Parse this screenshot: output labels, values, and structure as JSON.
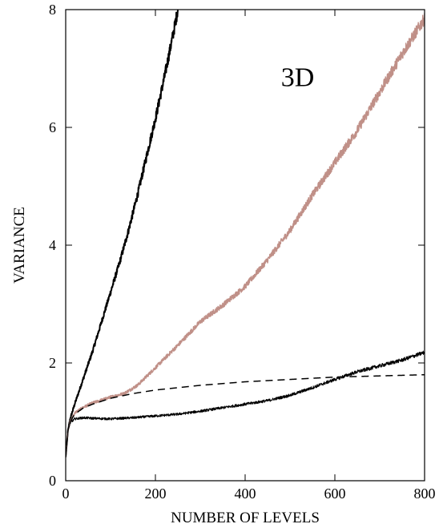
{
  "chart_data": {
    "type": "line",
    "title": "",
    "xlabel": "NUMBER OF LEVELS",
    "ylabel": "VARIANCE",
    "annotation": "3D",
    "xlim": [
      0,
      800
    ],
    "ylim": [
      0,
      8
    ],
    "x_ticks": [
      0,
      200,
      400,
      600,
      800
    ],
    "y_ticks": [
      0,
      2,
      4,
      6,
      8
    ],
    "x_tick_labels": [
      "0",
      "200",
      "400",
      "600",
      "800"
    ],
    "y_tick_labels": [
      "0",
      "2",
      "4",
      "6",
      "8"
    ],
    "grid": false,
    "legend": "none",
    "series": [
      {
        "style": "solid-black-thick",
        "color": "#000000",
        "noisy": true,
        "points": [
          [
            0,
            0.4
          ],
          [
            5,
            0.85
          ],
          [
            10,
            1.05
          ],
          [
            20,
            1.3
          ],
          [
            40,
            1.75
          ],
          [
            60,
            2.2
          ],
          [
            80,
            2.7
          ],
          [
            100,
            3.2
          ],
          [
            120,
            3.7
          ],
          [
            140,
            4.25
          ],
          [
            160,
            4.85
          ],
          [
            180,
            5.5
          ],
          [
            200,
            6.15
          ],
          [
            220,
            6.85
          ],
          [
            240,
            7.6
          ],
          [
            250,
            8.0
          ]
        ]
      },
      {
        "style": "solid-rosybrown",
        "color": "#c09088",
        "noisy": true,
        "points": [
          [
            0,
            0.4
          ],
          [
            5,
            0.85
          ],
          [
            10,
            1.0
          ],
          [
            20,
            1.15
          ],
          [
            40,
            1.25
          ],
          [
            60,
            1.32
          ],
          [
            80,
            1.37
          ],
          [
            100,
            1.42
          ],
          [
            130,
            1.48
          ],
          [
            160,
            1.62
          ],
          [
            200,
            1.92
          ],
          [
            250,
            2.3
          ],
          [
            300,
            2.7
          ],
          [
            350,
            2.98
          ],
          [
            400,
            3.3
          ],
          [
            450,
            3.75
          ],
          [
            500,
            4.25
          ],
          [
            550,
            4.85
          ],
          [
            600,
            5.4
          ],
          [
            650,
            5.95
          ],
          [
            700,
            6.6
          ],
          [
            750,
            7.25
          ],
          [
            800,
            7.85
          ]
        ]
      },
      {
        "style": "dashed-black",
        "color": "#000000",
        "noisy": false,
        "points": [
          [
            0,
            0.4
          ],
          [
            5,
            0.85
          ],
          [
            10,
            1.0
          ],
          [
            20,
            1.13
          ],
          [
            40,
            1.24
          ],
          [
            60,
            1.3
          ],
          [
            80,
            1.35
          ],
          [
            100,
            1.4
          ],
          [
            150,
            1.48
          ],
          [
            200,
            1.54
          ],
          [
            300,
            1.62
          ],
          [
            400,
            1.68
          ],
          [
            500,
            1.72
          ],
          [
            600,
            1.76
          ],
          [
            700,
            1.78
          ],
          [
            800,
            1.8
          ]
        ]
      },
      {
        "style": "solid-black-thin",
        "color": "#000000",
        "noisy": true,
        "points": [
          [
            0,
            0.4
          ],
          [
            5,
            0.85
          ],
          [
            10,
            0.98
          ],
          [
            20,
            1.05
          ],
          [
            40,
            1.07
          ],
          [
            60,
            1.06
          ],
          [
            100,
            1.05
          ],
          [
            150,
            1.07
          ],
          [
            200,
            1.1
          ],
          [
            250,
            1.13
          ],
          [
            300,
            1.18
          ],
          [
            350,
            1.24
          ],
          [
            400,
            1.3
          ],
          [
            450,
            1.36
          ],
          [
            500,
            1.45
          ],
          [
            550,
            1.58
          ],
          [
            600,
            1.72
          ],
          [
            650,
            1.85
          ],
          [
            700,
            1.95
          ],
          [
            750,
            2.05
          ],
          [
            800,
            2.18
          ]
        ]
      }
    ]
  }
}
